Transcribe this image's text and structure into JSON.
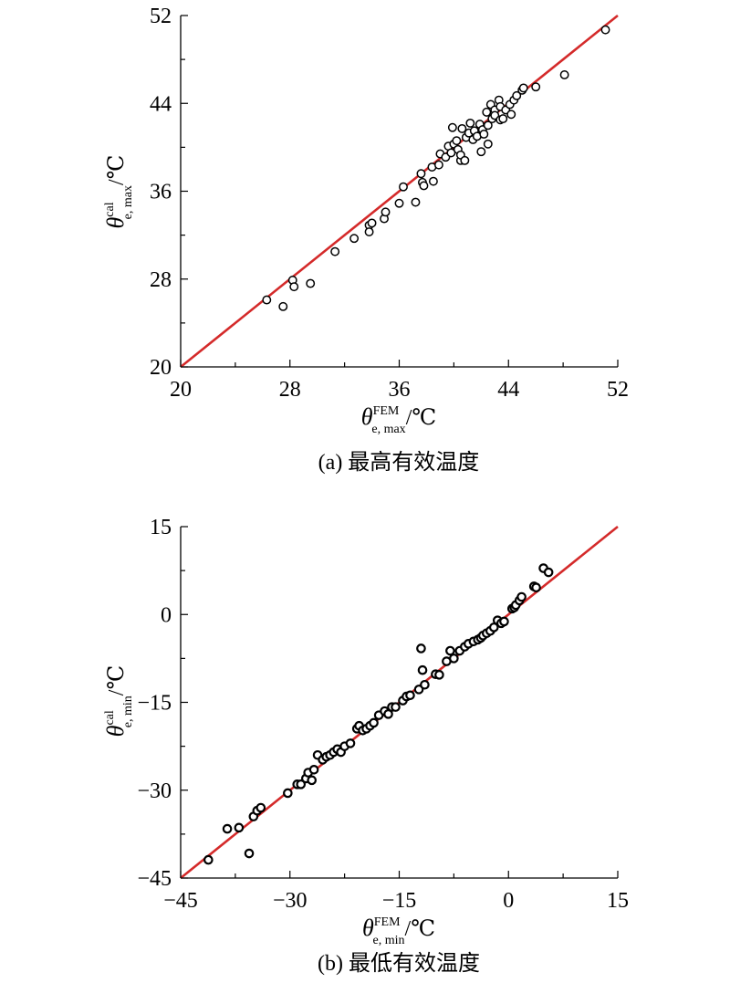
{
  "chart_data": [
    {
      "type": "scatter",
      "caption": "(a) 最高有效温度",
      "xlabel": {
        "symbol": "θ",
        "sub": "e, max",
        "sup": "FEM",
        "unit": "/℃"
      },
      "ylabel": {
        "symbol": "θ",
        "sub": "e, max",
        "sup": "cal",
        "unit": "/℃"
      },
      "xlim": [
        20,
        52
      ],
      "ylim": [
        20,
        52
      ],
      "xticks": [
        20,
        28,
        36,
        44,
        52
      ],
      "yticks": [
        20,
        28,
        36,
        44,
        52
      ],
      "xtick_labels": [
        "20",
        "28",
        "36",
        "44",
        "52"
      ],
      "ytick_labels": [
        "20",
        "28",
        "36",
        "44",
        "52"
      ],
      "line": {
        "x": [
          20,
          52
        ],
        "y": [
          20,
          52
        ],
        "color": "#d42a2a"
      },
      "points": [
        [
          26.3,
          26.1
        ],
        [
          27.5,
          25.5
        ],
        [
          28.2,
          27.9
        ],
        [
          28.3,
          27.3
        ],
        [
          29.5,
          27.6
        ],
        [
          31.3,
          30.5
        ],
        [
          32.7,
          31.7
        ],
        [
          33.8,
          32.9
        ],
        [
          33.8,
          32.3
        ],
        [
          34.0,
          33.1
        ],
        [
          34.9,
          33.5
        ],
        [
          35.0,
          34.1
        ],
        [
          36.0,
          34.9
        ],
        [
          36.3,
          36.4
        ],
        [
          37.2,
          35.0
        ],
        [
          37.6,
          37.6
        ],
        [
          37.7,
          36.8
        ],
        [
          37.8,
          36.5
        ],
        [
          38.4,
          38.2
        ],
        [
          38.5,
          36.9
        ],
        [
          38.9,
          38.4
        ],
        [
          39.0,
          39.4
        ],
        [
          39.4,
          39.1
        ],
        [
          39.6,
          40.1
        ],
        [
          39.8,
          39.5
        ],
        [
          39.9,
          41.8
        ],
        [
          40.0,
          40.3
        ],
        [
          40.2,
          40.6
        ],
        [
          40.3,
          39.8
        ],
        [
          40.5,
          38.8
        ],
        [
          40.5,
          39.3
        ],
        [
          40.6,
          41.7
        ],
        [
          40.8,
          38.8
        ],
        [
          40.9,
          40.9
        ],
        [
          41.1,
          41.3
        ],
        [
          41.2,
          42.2
        ],
        [
          41.4,
          40.7
        ],
        [
          41.5,
          41.5
        ],
        [
          41.7,
          41.0
        ],
        [
          41.9,
          42.1
        ],
        [
          42.0,
          39.6
        ],
        [
          42.1,
          41.6
        ],
        [
          42.2,
          41.2
        ],
        [
          42.4,
          43.2
        ],
        [
          42.5,
          42.0
        ],
        [
          42.5,
          40.3
        ],
        [
          42.7,
          43.9
        ],
        [
          42.8,
          42.6
        ],
        [
          43.0,
          43.4
        ],
        [
          43.0,
          42.9
        ],
        [
          43.3,
          44.3
        ],
        [
          43.4,
          43.7
        ],
        [
          43.4,
          42.5
        ],
        [
          43.6,
          42.6
        ],
        [
          43.8,
          43.4
        ],
        [
          44.1,
          43.9
        ],
        [
          44.2,
          43.0
        ],
        [
          44.4,
          44.3
        ],
        [
          44.6,
          44.7
        ],
        [
          45.0,
          45.2
        ],
        [
          45.1,
          45.4
        ],
        [
          46.0,
          45.5
        ],
        [
          48.1,
          46.6
        ],
        [
          51.1,
          50.7
        ]
      ]
    },
    {
      "type": "scatter",
      "caption": "(b) 最低有效温度",
      "xlabel": {
        "symbol": "θ",
        "sub": "e, min",
        "sup": "FEM",
        "unit": "/℃"
      },
      "ylabel": {
        "symbol": "θ",
        "sub": "e, min",
        "sup": "cal",
        "unit": "/℃"
      },
      "xlim": [
        -45,
        15
      ],
      "ylim": [
        -45,
        15
      ],
      "xticks": [
        -45,
        -30,
        -15,
        0,
        15
      ],
      "yticks": [
        -45,
        -30,
        -15,
        0,
        15
      ],
      "xtick_labels": [
        "−45",
        "−30",
        "−15",
        "0",
        "15"
      ],
      "ytick_labels": [
        "−45",
        "−30",
        "−15",
        "0",
        "15"
      ],
      "line": {
        "x": [
          -45,
          15
        ],
        "y": [
          -45,
          15
        ],
        "color": "#d42a2a"
      },
      "points": [
        [
          -41.2,
          -41.9
        ],
        [
          -38.6,
          -36.6
        ],
        [
          -37.0,
          -36.4
        ],
        [
          -35.6,
          -40.8
        ],
        [
          -35.0,
          -34.5
        ],
        [
          -34.5,
          -33.5
        ],
        [
          -34.0,
          -33.0
        ],
        [
          -30.3,
          -30.5
        ],
        [
          -29.0,
          -29.0
        ],
        [
          -28.5,
          -29.0
        ],
        [
          -27.8,
          -28.0
        ],
        [
          -27.5,
          -27.0
        ],
        [
          -27.0,
          -28.3
        ],
        [
          -26.7,
          -26.5
        ],
        [
          -26.2,
          -24.0
        ],
        [
          -25.5,
          -24.8
        ],
        [
          -25.0,
          -24.3
        ],
        [
          -24.5,
          -24.0
        ],
        [
          -24.0,
          -23.5
        ],
        [
          -23.5,
          -23.0
        ],
        [
          -23.0,
          -23.5
        ],
        [
          -22.5,
          -22.5
        ],
        [
          -21.7,
          -22.0
        ],
        [
          -20.8,
          -19.5
        ],
        [
          -20.5,
          -19.0
        ],
        [
          -20.0,
          -19.8
        ],
        [
          -19.5,
          -19.5
        ],
        [
          -19.0,
          -19.0
        ],
        [
          -18.5,
          -18.5
        ],
        [
          -17.8,
          -17.2
        ],
        [
          -17.0,
          -16.5
        ],
        [
          -16.5,
          -17.0
        ],
        [
          -16.0,
          -15.8
        ],
        [
          -15.5,
          -15.8
        ],
        [
          -14.5,
          -14.7
        ],
        [
          -14.0,
          -14.0
        ],
        [
          -13.5,
          -13.8
        ],
        [
          -12.3,
          -12.8
        ],
        [
          -12.0,
          -5.8
        ],
        [
          -11.8,
          -9.5
        ],
        [
          -11.5,
          -12.0
        ],
        [
          -10.0,
          -10.2
        ],
        [
          -9.5,
          -10.3
        ],
        [
          -8.5,
          -8.0
        ],
        [
          -8.0,
          -6.2
        ],
        [
          -7.5,
          -7.5
        ],
        [
          -6.7,
          -6.2
        ],
        [
          -6.0,
          -5.5
        ],
        [
          -5.5,
          -5.0
        ],
        [
          -4.8,
          -4.6
        ],
        [
          -4.2,
          -4.3
        ],
        [
          -3.8,
          -4.0
        ],
        [
          -3.5,
          -3.6
        ],
        [
          -3.0,
          -3.2
        ],
        [
          -2.5,
          -2.8
        ],
        [
          -2.0,
          -2.2
        ],
        [
          -1.5,
          -1.0
        ],
        [
          -1.0,
          -1.5
        ],
        [
          -0.6,
          -1.2
        ],
        [
          0.5,
          1.0
        ],
        [
          0.8,
          1.2
        ],
        [
          1.0,
          1.6
        ],
        [
          1.5,
          2.4
        ],
        [
          1.8,
          3.0
        ],
        [
          3.5,
          4.8
        ],
        [
          3.8,
          4.6
        ],
        [
          4.8,
          7.9
        ],
        [
          5.5,
          7.2
        ]
      ]
    }
  ]
}
